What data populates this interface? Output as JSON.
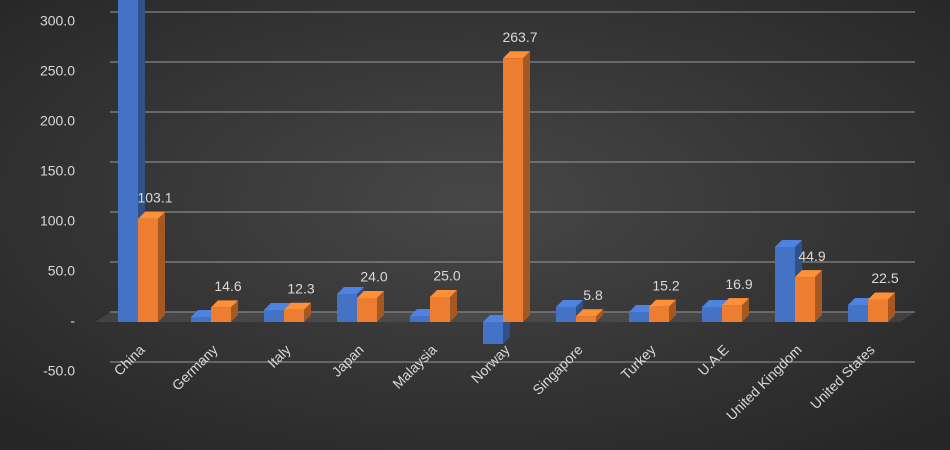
{
  "chart_data": {
    "type": "bar3d",
    "categories": [
      "China",
      "Germany",
      "Italy",
      "Japan",
      "Malaysia",
      "Norway",
      "Singapore",
      "Turkey",
      "U.A.E",
      "United Kingdom",
      "United States"
    ],
    "series": [
      {
        "color": "#4472c4",
        "values": [
          330,
          5,
          12,
          28,
          6,
          -22,
          15,
          10,
          15,
          75,
          17
        ]
      },
      {
        "color": "#ed7d31",
        "values": [
          103.1,
          14.6,
          12.3,
          24.0,
          25.0,
          263.7,
          5.8,
          15.2,
          16.9,
          44.9,
          22.5
        ],
        "value_labels": [
          "103.1",
          "14.6",
          "12.3",
          "24.0",
          "25.0",
          "263.7",
          "5.8",
          "15.2",
          "16.9",
          "44.9",
          "22.5"
        ]
      }
    ],
    "ylim": [
      -50,
      330
    ],
    "yticks": [
      {
        "value": -50,
        "label": "-50.0"
      },
      {
        "value": 0,
        "label": "-"
      },
      {
        "value": 50,
        "label": "50.0"
      },
      {
        "value": 100,
        "label": "100.0"
      },
      {
        "value": 150,
        "label": "150.0"
      },
      {
        "value": 200,
        "label": "200.0"
      },
      {
        "value": 250,
        "label": "250.0"
      },
      {
        "value": 300,
        "label": "300.0"
      }
    ],
    "grid": true
  }
}
